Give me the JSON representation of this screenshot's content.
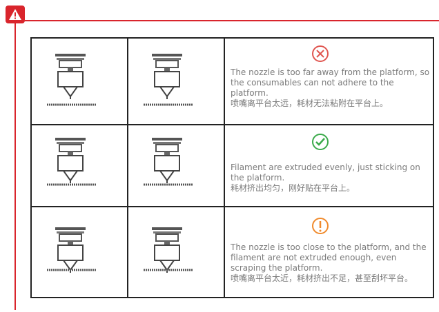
{
  "table": {
    "rows": [
      {
        "en": "The nozzle is too far away from the platform, so the consumables can not adhere to the platform.",
        "zh": "喷嘴离平台太远，耗材无法粘附在平台上。"
      },
      {
        "en": "Filament are extruded evenly, just sticking on the platform.",
        "zh": "耗材挤出均匀，刚好贴在平台上。"
      },
      {
        "en": "The nozzle is too close to the platform, and the filament are not extruded enough, even scraping the platform.",
        "zh": "喷嘴离平台太近，耗材挤出不足，甚至刮坏平台。"
      }
    ]
  }
}
